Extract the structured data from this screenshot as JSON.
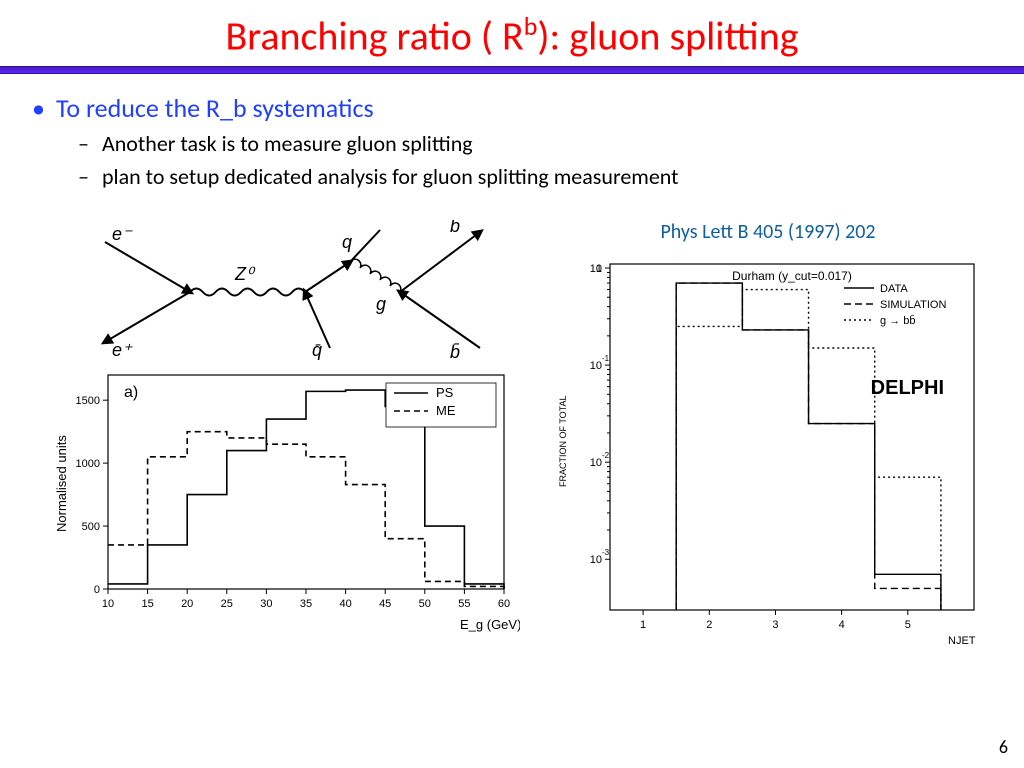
{
  "title_prefix": "Branching ratio ( R",
  "title_sup": "b",
  "title_suffix": "): gluon splitting",
  "bullet_main": "To reduce the R_b systematics",
  "sub_bullets": [
    "Another task is to measure gluon splitting",
    "plan to setup dedicated analysis for gluon splitting measurement"
  ],
  "citation": "Phys Lett B 405 (1997) 202",
  "page_number": "6",
  "feynman": {
    "labels": {
      "e_minus": "e⁻",
      "e_plus": "e⁺",
      "Z0": "Z⁰",
      "q": "q",
      "qbar": "q̄",
      "g": "g",
      "b": "b",
      "bbar": "b̄"
    },
    "stroke": "#000000",
    "stroke_width": 2
  },
  "histogram_left": {
    "type": "step-histogram",
    "panel_label": "a)",
    "xlabel": "E_g (GeV)",
    "ylabel": "Normalised units",
    "xlim": [
      10,
      60
    ],
    "ylim": [
      0,
      1700
    ],
    "xticks": [
      10,
      15,
      20,
      25,
      30,
      35,
      40,
      45,
      50,
      55,
      60
    ],
    "yticks": [
      0,
      500,
      1000,
      1500
    ],
    "bin_edges": [
      10,
      15,
      20,
      25,
      30,
      35,
      40,
      45,
      50,
      55,
      60
    ],
    "series": [
      {
        "name": "PS",
        "dash": "solid",
        "color": "#000000",
        "values": [
          40,
          350,
          750,
          1100,
          1350,
          1570,
          1580,
          1450,
          500,
          40
        ]
      },
      {
        "name": "ME",
        "dash": "dashed",
        "color": "#000000",
        "values": [
          350,
          1050,
          1250,
          1200,
          1150,
          1050,
          830,
          400,
          60,
          20
        ]
      }
    ],
    "legend": [
      "PS",
      "ME"
    ],
    "line_width": 1.6,
    "background_color": "#ffffff",
    "axis_color": "#000000",
    "tick_fontsize": 11,
    "label_fontsize": 13
  },
  "histogram_right": {
    "type": "step-histogram-log",
    "title_inset": "Durham (y_cut=0.017)",
    "xlabel": "NJET",
    "ylabel": "FRACTION OF TOTAL",
    "experiment_label": "DELPHI",
    "xlim": [
      0.5,
      6.0
    ],
    "ylim_log": [
      0.0003,
      1.1
    ],
    "xticks": [
      1,
      2,
      3,
      4,
      5
    ],
    "ylog_ticks": [
      0.001,
      0.01,
      0.1,
      1
    ],
    "bin_edges": [
      1.5,
      2.5,
      3.5,
      4.5,
      5.5
    ],
    "series": [
      {
        "name": "DATA",
        "dash": "solid",
        "color": "#000000",
        "values": [
          0.7,
          0.23,
          0.025,
          0.0007
        ]
      },
      {
        "name": "SIMULATION",
        "dash": "dashed",
        "color": "#000000",
        "values": [
          0.7,
          0.23,
          0.025,
          0.0005
        ]
      },
      {
        "name": "g → bb̄",
        "dash": "dotted",
        "color": "#000000",
        "values": [
          0.25,
          0.6,
          0.15,
          0.007
        ]
      }
    ],
    "legend": [
      "DATA",
      "SIMULATION",
      "g → bb̄"
    ],
    "line_width": 1.4,
    "background_color": "#ffffff",
    "axis_color": "#000000",
    "tick_fontsize": 11,
    "label_fontsize": 11
  }
}
